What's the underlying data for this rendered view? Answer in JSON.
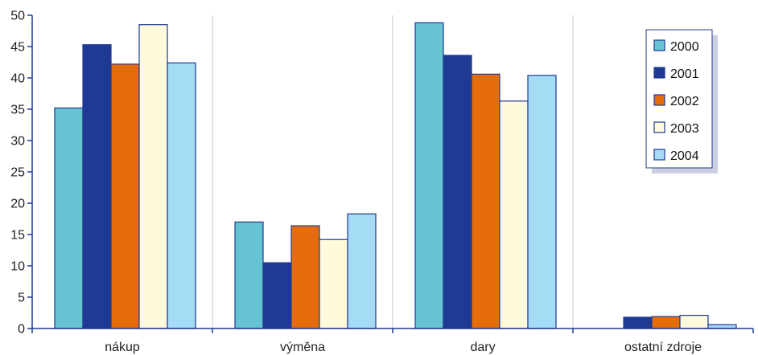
{
  "chart_data": {
    "type": "bar",
    "categories": [
      "nákup",
      "výměna",
      "dary",
      "ostatní zdroje"
    ],
    "series": [
      {
        "name": "2000",
        "color": "#66c3d1",
        "values": [
          35.2,
          17.0,
          48.8,
          0.0
        ]
      },
      {
        "name": "2001",
        "color": "#1f3a93",
        "values": [
          45.3,
          10.5,
          43.6,
          1.8
        ]
      },
      {
        "name": "2002",
        "color": "#e46c0a",
        "values": [
          42.2,
          16.4,
          40.6,
          1.9
        ]
      },
      {
        "name": "2003",
        "color": "#fffadc",
        "values": [
          48.5,
          14.2,
          36.3,
          2.1
        ]
      },
      {
        "name": "2004",
        "color": "#a4dcf5",
        "values": [
          42.4,
          18.3,
          40.4,
          0.6
        ]
      }
    ],
    "ylim": [
      0,
      50
    ],
    "yticks": [
      0,
      5,
      10,
      15,
      20,
      25,
      30,
      35,
      40,
      45,
      50
    ],
    "grid": "vertical separators between categories",
    "legend_position": "top-right",
    "axis_color": "#1f3a93",
    "bar_outline_color": "#1f3a93",
    "grid_color": "#c8c8c8"
  }
}
